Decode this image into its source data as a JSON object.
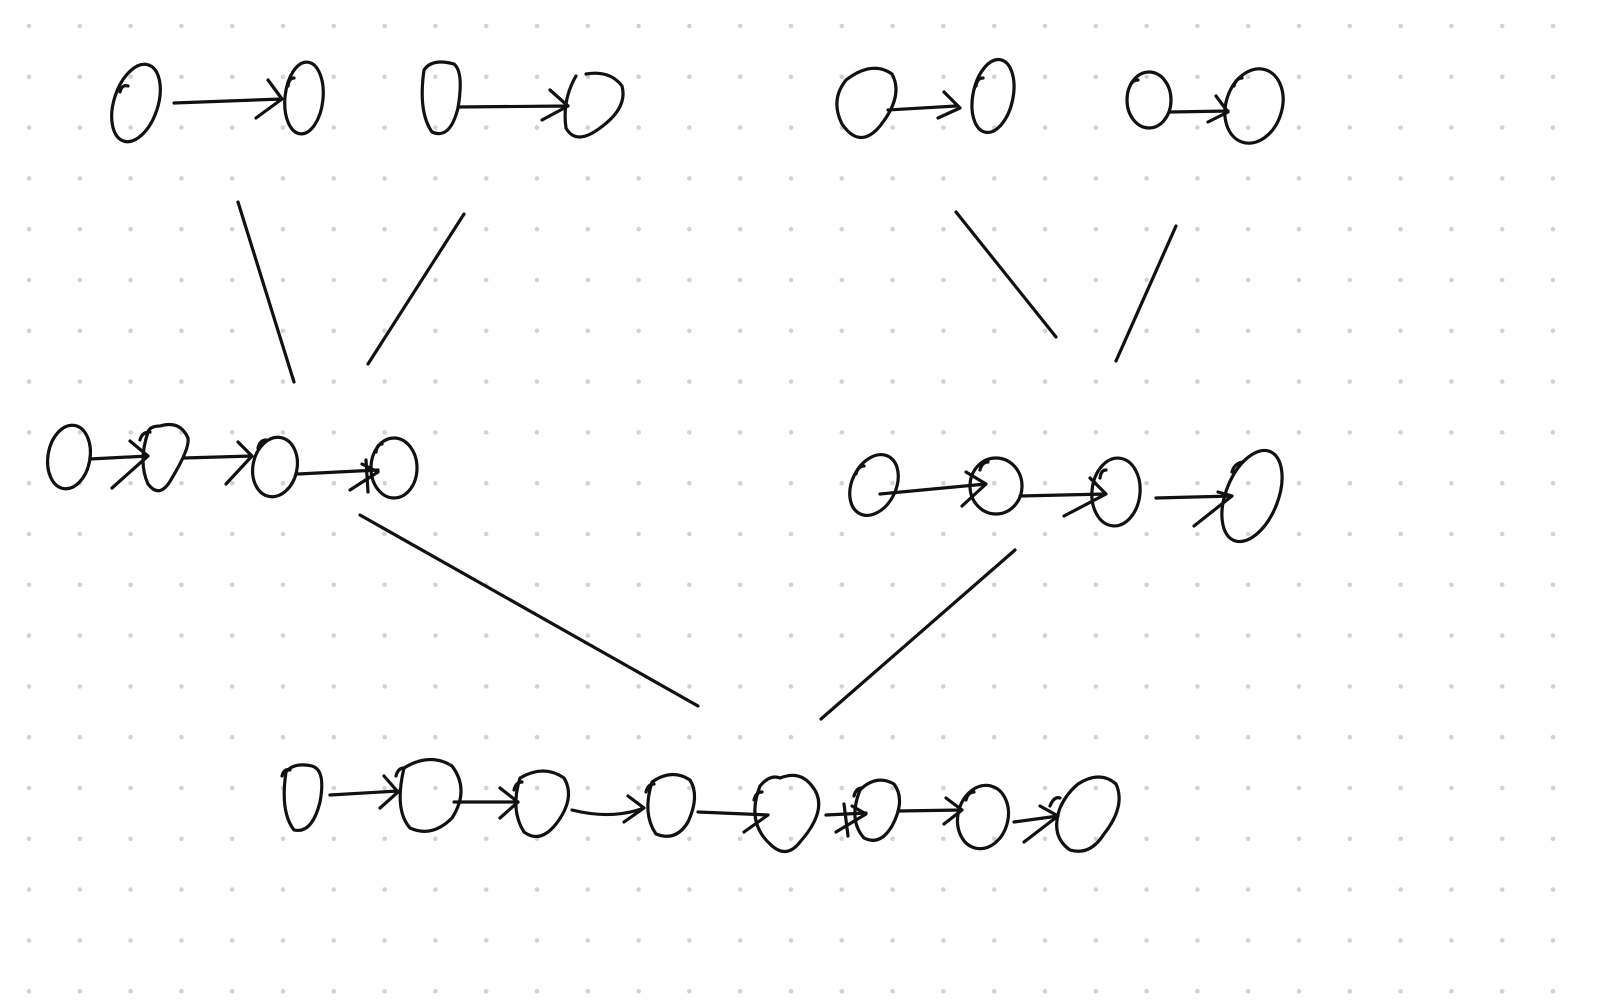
{
  "colors": {
    "background": "#ffffff",
    "ink": "#111111",
    "grid_dot": "#d2d2d2"
  },
  "diagram": {
    "type": "merge-tree-of-linked-lists",
    "grid": "dotted",
    "levels": [
      {
        "level": 0,
        "lists": [
          {
            "nodes": 2
          },
          {
            "nodes": 2
          },
          {
            "nodes": 2
          },
          {
            "nodes": 2
          }
        ]
      },
      {
        "level": 1,
        "lists": [
          {
            "nodes": 4,
            "merged_from": [
              0,
              1
            ]
          },
          {
            "nodes": 4,
            "merged_from": [
              2,
              3
            ]
          }
        ]
      },
      {
        "level": 2,
        "lists": [
          {
            "nodes": 8,
            "merged_from": [
              0,
              1
            ]
          }
        ]
      }
    ],
    "merge_lines": 6
  }
}
